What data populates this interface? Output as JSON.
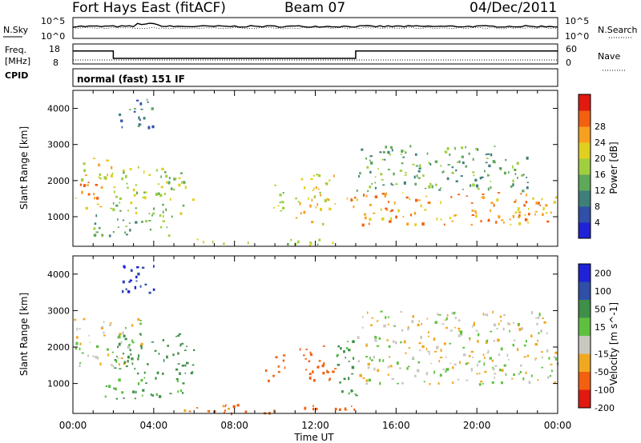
{
  "header": {
    "station": "Fort Hays East (fitACF)",
    "beam": "Beam 07",
    "date": "04/Dec/2011"
  },
  "noise_panel": {
    "left_label": "N.Sky",
    "left_ticks": [
      "10^5",
      "10^0"
    ],
    "right_ticks": [
      "10^5",
      "10^0"
    ],
    "right_label": "N.Search"
  },
  "freq_panel": {
    "left_label_line1": "Freq.",
    "left_label_line2": "[MHz]",
    "left_ticks": [
      "18",
      "8"
    ],
    "right_ticks": [
      "60",
      "0"
    ],
    "right_label": "Nave",
    "freq_steps_mhz": [
      {
        "t": 0.0,
        "v": 14.5
      },
      {
        "t": 2.0,
        "v": 10.8
      },
      {
        "t": 14.0,
        "v": 14.5
      },
      {
        "t": 24.0,
        "v": 14.5
      }
    ],
    "nave_level": 12
  },
  "cpid": {
    "label": "CPID",
    "value": "normal (fast) 151 IF"
  },
  "chart_data": [
    {
      "type": "heatmap",
      "quantity": "Power",
      "ylabel": "Slant Range [km]",
      "xlim": [
        0,
        24
      ],
      "ylim": [
        180,
        4500
      ],
      "yticks": [
        "1000",
        "2000",
        "3000",
        "4000"
      ],
      "colorbar_label": "Power [dB]",
      "colorbar_ticks": [
        "4",
        "8",
        "12",
        "16",
        "20",
        "24",
        "28"
      ],
      "colorbar_colors": [
        "#1f22d6",
        "#2f4fa8",
        "#3f7f7a",
        "#5fa85a",
        "#9fcf3f",
        "#e0d020",
        "#f7a020",
        "#f26010",
        "#e01a10"
      ],
      "echo_regions": [
        {
          "t0": 0.0,
          "t1": 1.5,
          "r0": 1200,
          "r1": 2000,
          "level": 24
        },
        {
          "t0": 0.3,
          "t1": 2.0,
          "r0": 2000,
          "r1": 2800,
          "level": 20
        },
        {
          "t0": 1.8,
          "t1": 6.0,
          "r0": 1100,
          "r1": 2400,
          "level": 16
        },
        {
          "t0": 1.0,
          "t1": 5.0,
          "r0": 500,
          "r1": 1100,
          "level": 12
        },
        {
          "t0": 2.0,
          "t1": 4.0,
          "r0": 3500,
          "r1": 4300,
          "level": 8
        },
        {
          "t0": 9.5,
          "t1": 10.5,
          "r0": 1100,
          "r1": 1900,
          "level": 16
        },
        {
          "t0": 11.0,
          "t1": 13.0,
          "r0": 800,
          "r1": 2200,
          "level": 20
        },
        {
          "t0": 13.5,
          "t1": 24.0,
          "r0": 800,
          "r1": 1700,
          "level": 24
        },
        {
          "t0": 14.0,
          "t1": 22.5,
          "r0": 1700,
          "r1": 3000,
          "level": 12
        },
        {
          "t0": 6.0,
          "t1": 14.0,
          "r0": 250,
          "r1": 400,
          "level": 16
        }
      ]
    },
    {
      "type": "heatmap",
      "quantity": "Velocity",
      "ylabel": "Slant Range [km]",
      "xlabel": "Time UT",
      "xlim": [
        0,
        24
      ],
      "ylim": [
        180,
        4500
      ],
      "xticks": [
        "00:00",
        "04:00",
        "08:00",
        "12:00",
        "16:00",
        "20:00",
        "00:00"
      ],
      "yticks": [
        "1000",
        "2000",
        "3000",
        "4000"
      ],
      "colorbar_label": "Velocity [m s^-1]",
      "colorbar_ticks": [
        "200",
        "100",
        "50",
        "15",
        "-15",
        "-50",
        "-100",
        "-200"
      ],
      "colorbar_colors": [
        "#1f22d6",
        "#2f4fa8",
        "#3f8f4a",
        "#5fc040",
        "#c8c8c0",
        "#f0a820",
        "#f26010",
        "#e01a10"
      ],
      "echo_regions": [
        {
          "t0": 0.0,
          "t1": 3.5,
          "r0": 1500,
          "r1": 2800,
          "level": 0
        },
        {
          "t0": 1.5,
          "t1": 5.5,
          "r0": 600,
          "r1": 1200,
          "level": 30
        },
        {
          "t0": 2.0,
          "t1": 6.0,
          "r0": 1300,
          "r1": 2400,
          "level": 60
        },
        {
          "t0": 2.0,
          "t1": 4.0,
          "r0": 3500,
          "r1": 4300,
          "level": 150
        },
        {
          "t0": 9.5,
          "t1": 10.5,
          "r0": 1100,
          "r1": 1800,
          "level": -50
        },
        {
          "t0": 11.0,
          "t1": 13.0,
          "r0": 1100,
          "r1": 2100,
          "level": -60
        },
        {
          "t0": 13.0,
          "t1": 14.0,
          "r0": 500,
          "r1": 2400,
          "level": 40
        },
        {
          "t0": 14.0,
          "t1": 24.0,
          "r0": 1000,
          "r1": 2200,
          "level": 0
        },
        {
          "t0": 14.0,
          "t1": 23.5,
          "r0": 2200,
          "r1": 3000,
          "level": 0
        },
        {
          "t0": 5.0,
          "t1": 14.0,
          "r0": 200,
          "r1": 450,
          "level": -40
        }
      ]
    }
  ]
}
